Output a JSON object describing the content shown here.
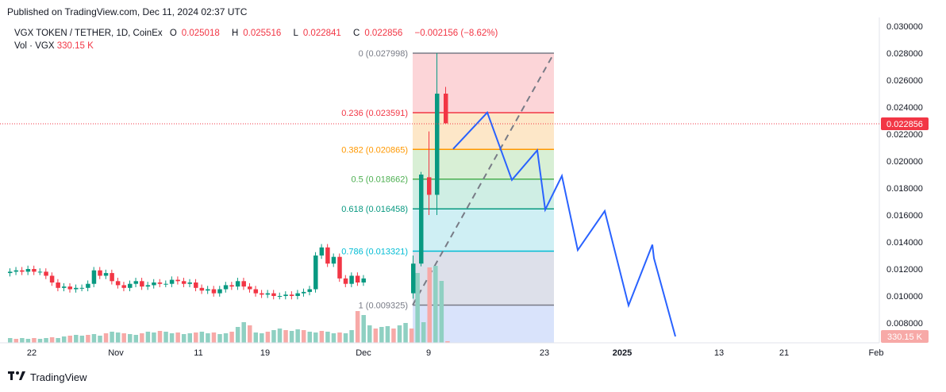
{
  "published": "Published on TradingView.com, Dec 11, 2024 02:37 UTC",
  "legend": {
    "symbol": "VGX TOKEN / TETHER, 1D, CoinEx",
    "o_label": "O",
    "o_value": "0.025018",
    "h_label": "H",
    "h_value": "0.025516",
    "l_label": "L",
    "l_value": "0.022841",
    "c_label": "C",
    "c_value": "0.022856",
    "change": "−0.002156 (−8.62%)",
    "vol_label": "Vol · VGX",
    "vol_value": "330.15 K"
  },
  "price_axis": [
    "0.030000",
    "0.028000",
    "0.026000",
    "0.024000",
    "0.022000",
    "0.020000",
    "0.018000",
    "0.016000",
    "0.014000",
    "0.012000",
    "0.010000",
    "0.008000"
  ],
  "current_price_badge": "0.022856",
  "volume_badge": "330.15 K",
  "time_axis": [
    "22",
    "Nov",
    "11",
    "19",
    "Dec",
    "9",
    "23",
    "2025",
    "13",
    "21",
    "Feb"
  ],
  "fib_levels": [
    {
      "label": "0 (0.027998)",
      "ratio": 0,
      "price": 0.027998,
      "color": "#787b86"
    },
    {
      "label": "0.236 (0.023591)",
      "ratio": 0.236,
      "price": 0.023591,
      "color": "#f23645"
    },
    {
      "label": "0.382 (0.020865)",
      "ratio": 0.382,
      "price": 0.020865,
      "color": "#ff9800"
    },
    {
      "label": "0.5 (0.018662)",
      "ratio": 0.5,
      "price": 0.018662,
      "color": "#4caf50"
    },
    {
      "label": "0.618 (0.016458)",
      "ratio": 0.618,
      "price": 0.016458,
      "color": "#089981"
    },
    {
      "label": "0.786 (0.013321)",
      "ratio": 0.786,
      "price": 0.013321,
      "color": "#00bcd4"
    },
    {
      "label": "1 (0.009325)",
      "ratio": 1,
      "price": 0.009325,
      "color": "#787b86"
    }
  ],
  "projection_path_prices": [
    0.0209,
    0.0236,
    0.0186,
    0.0208,
    0.0164,
    0.0189,
    0.0134,
    0.0163,
    0.0093,
    0.0138,
    0.0128,
    0.007
  ],
  "colors": {
    "up": "#089981",
    "down": "#f23645",
    "projection": "#2962ff"
  },
  "footer": {
    "brand": "TradingView"
  }
}
